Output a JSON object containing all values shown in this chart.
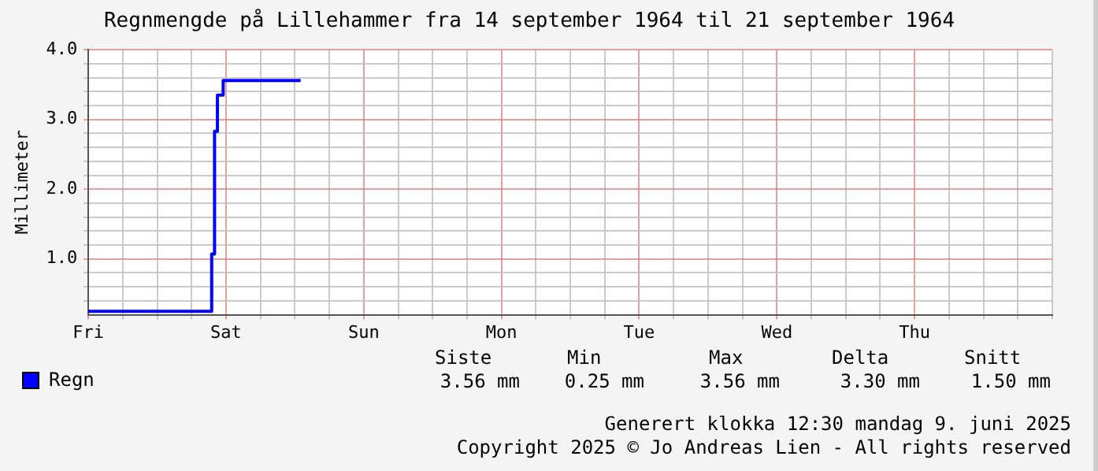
{
  "chart_data": {
    "type": "step",
    "title": "Regnmengde på Lillehammer fra 14 september 1964 til 21 september 1964",
    "ylabel": "Millimeter",
    "categories": [
      "Fri",
      null,
      null,
      null,
      null,
      null,
      null,
      null,
      null,
      null,
      null,
      null,
      null,
      null,
      null,
      null,
      null,
      null,
      null,
      null,
      null,
      null,
      null,
      null,
      null,
      null,
      null,
      null,
      null,
      null,
      null,
      null,
      null,
      null,
      null,
      null,
      null,
      null,
      null,
      null,
      null,
      null,
      null,
      null,
      null,
      null,
      null,
      null,
      "Sat",
      null,
      null,
      null,
      null,
      null,
      null,
      null,
      null,
      null,
      null,
      null,
      null,
      null,
      null,
      null,
      null,
      null,
      null,
      null,
      null,
      null,
      null,
      null,
      null,
      null,
      null,
      null,
      null,
      null,
      null,
      null,
      null,
      null,
      null,
      null,
      null,
      null,
      null,
      null,
      null,
      null,
      null,
      null,
      null,
      null,
      null,
      null,
      "Sun",
      null,
      null,
      null,
      null,
      null,
      null,
      null,
      null,
      null,
      null,
      null,
      null,
      null,
      null,
      null,
      null,
      null,
      null,
      null,
      null,
      null,
      null,
      null,
      null,
      null,
      null,
      null,
      null,
      null,
      null,
      null,
      null,
      null,
      null,
      null,
      null,
      null,
      null,
      null,
      null,
      null,
      null,
      null,
      null,
      null,
      null,
      null,
      "Mon",
      null,
      null,
      null,
      null,
      null,
      null,
      null,
      null,
      null,
      null,
      null,
      null,
      null,
      null,
      null,
      null,
      null,
      null,
      null,
      null,
      null,
      null,
      null,
      null,
      null,
      null,
      null,
      null,
      null,
      null,
      null,
      null,
      null,
      null,
      null,
      null,
      null,
      null,
      null,
      null,
      null,
      null,
      null,
      null,
      null,
      null,
      null,
      "Tue",
      null,
      null,
      null,
      null,
      null,
      null,
      null,
      null,
      null,
      null,
      null,
      null,
      null,
      null,
      null,
      null,
      null,
      null,
      null,
      null,
      null,
      null,
      null,
      null,
      null,
      null,
      null,
      null,
      null,
      null,
      null,
      null,
      null,
      null,
      null,
      null,
      null,
      null,
      null,
      null,
      null,
      null,
      null,
      null,
      null,
      null,
      null,
      "Wed",
      null,
      null,
      null,
      null,
      null,
      null,
      null,
      null,
      null,
      null,
      null,
      null,
      null,
      null,
      null,
      null,
      null,
      null,
      null,
      null,
      null,
      null,
      null,
      null,
      null,
      null,
      null,
      null,
      null,
      null,
      null,
      null,
      null,
      null,
      null,
      null,
      null,
      null,
      null,
      null,
      null,
      null,
      null,
      null,
      null,
      null,
      null,
      "Thu",
      null,
      null,
      null,
      null,
      null,
      null,
      null,
      null,
      null,
      null,
      null,
      null,
      null,
      null,
      null,
      null,
      null,
      null,
      null,
      null,
      null,
      null,
      null,
      null,
      null,
      null,
      null,
      null,
      null,
      null,
      null,
      null,
      null,
      null,
      null,
      null,
      null,
      null,
      null,
      null,
      null,
      null,
      null,
      null,
      null,
      null,
      null,
      null
    ],
    "ylim": [
      0.2,
      4
    ],
    "yticks": [
      {
        "value": 0.4,
        "label": null
      },
      {
        "value": 0.6,
        "label": null
      },
      {
        "value": 0.8,
        "label": null
      },
      {
        "value": 1,
        "label": "1.0"
      },
      {
        "value": 1.2,
        "label": null
      },
      {
        "value": 1.4,
        "label": null
      },
      {
        "value": 1.6,
        "label": null
      },
      {
        "value": 1.8,
        "label": null
      },
      {
        "value": 2,
        "label": "2.0"
      },
      {
        "value": 2.2,
        "label": null
      },
      {
        "value": 2.4,
        "label": null
      },
      {
        "value": 2.6,
        "label": null
      },
      {
        "value": 2.8,
        "label": null
      },
      {
        "value": 3,
        "label": "3.0"
      },
      {
        "value": 3.2,
        "label": null
      },
      {
        "value": 3.4,
        "label": null
      },
      {
        "value": 3.6,
        "label": null
      },
      {
        "value": 3.8,
        "label": null
      },
      {
        "value": 4,
        "label": "4.0"
      }
    ],
    "grid": true,
    "legend": "bottom left",
    "series": [
      {
        "name": "Regn",
        "color": "#0000ff",
        "values": [
          0.25,
          0.25,
          0.25,
          0.25,
          0.25,
          0.25,
          0.25,
          0.25,
          0.25,
          0.25,
          0.25,
          0.25,
          0.25,
          0.25,
          0.25,
          0.25,
          0.25,
          0.25,
          0.25,
          0.25,
          0.25,
          0.25,
          0.25,
          0.25,
          0.25,
          0.25,
          0.25,
          0.25,
          0.25,
          0.25,
          0.25,
          0.25,
          0.25,
          0.25,
          0.25,
          0.25,
          0.25,
          0.25,
          0.25,
          0.25,
          0.25,
          0.25,
          0.25,
          0.25,
          1.07,
          2.83,
          3.35,
          3.35,
          3.56,
          3.56,
          3.56,
          3.56,
          3.56,
          3.56,
          3.56,
          3.56,
          3.56,
          3.56,
          3.56,
          3.56,
          3.56,
          3.56,
          3.56,
          3.56,
          3.56,
          3.56,
          3.56,
          3.56,
          3.56,
          3.56,
          3.56,
          3.56,
          3.56,
          3.56,
          3.56,
          null,
          null,
          null,
          null,
          null,
          null,
          null,
          null,
          null,
          null,
          null,
          null,
          null,
          null,
          null,
          null,
          null,
          null,
          null,
          null,
          null,
          null,
          null,
          null,
          null,
          null,
          null,
          null,
          null,
          null,
          null,
          null,
          null,
          null,
          null,
          null,
          null,
          null,
          null,
          null,
          null,
          null,
          null,
          null,
          null,
          null,
          null,
          null,
          null,
          null,
          null,
          null,
          null,
          null,
          null,
          null,
          null,
          null,
          null,
          null,
          null,
          null,
          null,
          null,
          null,
          null,
          null,
          null,
          null,
          null,
          null,
          null,
          null,
          null,
          null,
          null,
          null,
          null,
          null,
          null,
          null,
          null,
          null,
          null,
          null,
          null,
          null,
          null,
          null,
          null,
          null,
          null,
          null,
          null,
          null,
          null,
          null,
          null,
          null,
          null,
          null,
          null,
          null,
          null,
          null,
          null,
          null,
          null,
          null,
          null,
          null,
          null,
          null,
          null,
          null,
          null,
          null,
          null,
          null,
          null,
          null,
          null,
          null,
          null,
          null,
          null,
          null,
          null,
          null,
          null,
          null,
          null,
          null,
          null,
          null,
          null,
          null,
          null,
          null,
          null,
          null,
          null,
          null,
          null,
          null,
          null,
          null,
          null,
          null,
          null,
          null,
          null,
          null,
          null,
          null,
          null,
          null,
          null,
          null,
          null,
          null,
          null,
          null,
          null,
          null,
          null,
          null,
          null,
          null,
          null,
          null,
          null,
          null,
          null,
          null,
          null,
          null,
          null,
          null,
          null,
          null,
          null,
          null,
          null,
          null,
          null,
          null,
          null,
          null,
          null,
          null,
          null,
          null,
          null,
          null,
          null,
          null,
          null,
          null,
          null,
          null,
          null,
          null,
          null,
          null,
          null,
          null,
          null,
          null,
          null,
          null,
          null,
          null,
          null,
          null,
          null,
          null,
          null,
          null,
          null,
          null,
          null,
          null,
          null,
          null,
          null,
          null,
          null,
          null,
          null,
          null,
          null,
          null,
          null,
          null,
          null,
          null,
          null,
          null,
          null,
          null,
          null,
          null,
          null,
          null,
          null,
          null,
          null,
          null,
          null,
          null,
          null,
          null,
          null,
          null,
          null,
          null,
          null,
          null,
          null,
          null,
          null
        ]
      }
    ],
    "annotations": [
      "Siste",
      "Min",
      "Max",
      "Delta",
      "Snitt",
      "3.56 mm",
      "0.25 mm",
      "3.56 mm",
      "3.30 mm",
      "1.50 mm",
      "Generert klokka 12:30 mandag 9. juni 2025",
      "Copyright 2025 © Jo Andreas Lien - All rights reserved"
    ]
  }
}
